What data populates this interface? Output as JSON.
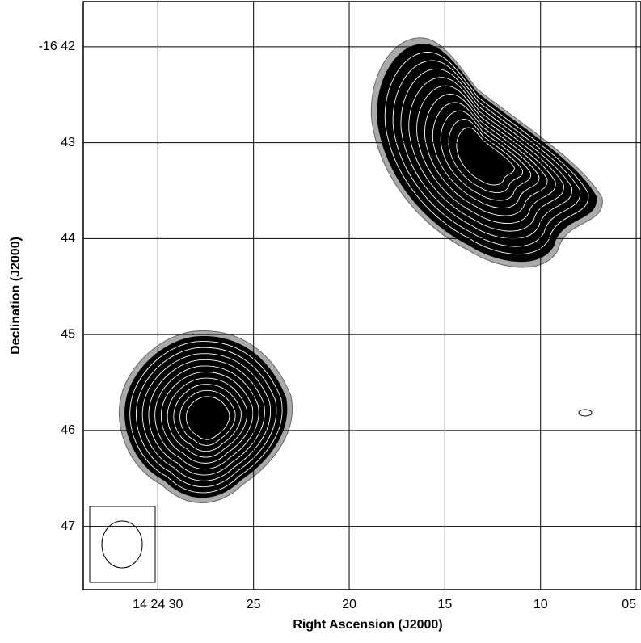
{
  "chart_data": {
    "type": "image",
    "xlabel": "Right Ascension (J2000)",
    "ylabel": "Declination (J2000)",
    "xlim": [
      33.9,
      4.75
    ],
    "xticks": [
      {
        "value": 30,
        "label": "14 24 30"
      },
      25,
      20,
      15,
      10,
      {
        "value": 5,
        "label": "05"
      }
    ],
    "ylim": [
      47.66,
      41.53
    ],
    "yticks": [
      {
        "value": 42,
        "label": "-16 42"
      },
      43,
      44,
      45,
      46,
      47
    ],
    "grid": true
  }
}
